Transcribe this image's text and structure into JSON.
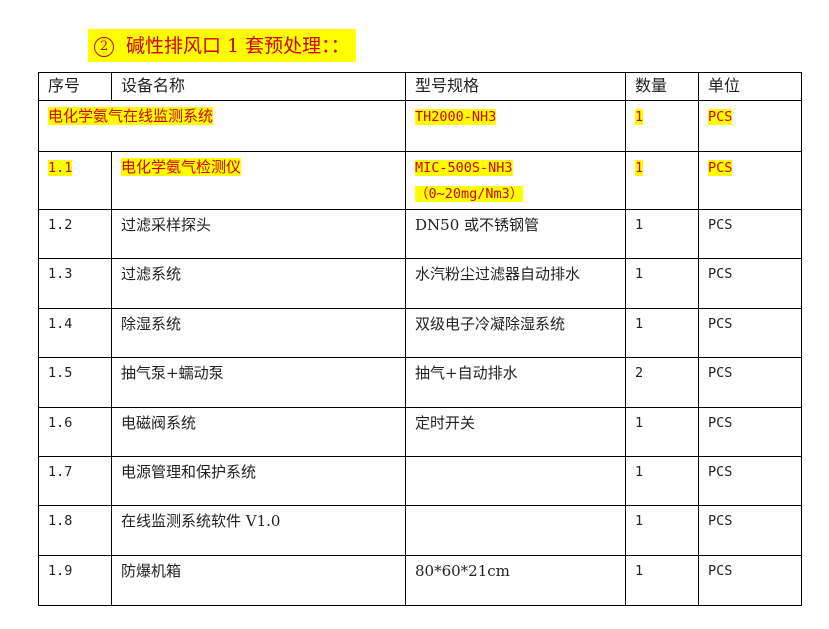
{
  "heading": {
    "number": "2",
    "text": "碱性排风口 1 套预处理：："
  },
  "table": {
    "headers": [
      "序号",
      "设备名称",
      "型号规格",
      "数量",
      "单位"
    ],
    "system_row": {
      "name": "电化学氨气在线监测系统",
      "model": "TH2000-NH3",
      "qty": "1",
      "unit": "PCS"
    },
    "rows": [
      {
        "no": "1.1",
        "name": "电化学氨气检测仪",
        "model": "MIC-500S-NH3",
        "model2": "（0~20mg/Nm3）",
        "qty": "1",
        "unit": "PCS"
      },
      {
        "no": "1.2",
        "name": "过滤采样探头",
        "model": "DN50 或不锈钢管",
        "qty": "1",
        "unit": "PCS"
      },
      {
        "no": "1.3",
        "name": "过滤系统",
        "model": "水汽粉尘过滤器自动排水",
        "qty": "1",
        "unit": "PCS"
      },
      {
        "no": "1.4",
        "name": "除湿系统",
        "model": "双级电子冷凝除湿系统",
        "qty": "1",
        "unit": "PCS"
      },
      {
        "no": "1.5",
        "name": "抽气泵+蠕动泵",
        "model": "抽气+自动排水",
        "qty": "2",
        "unit": "PCS"
      },
      {
        "no": "1.6",
        "name": "电磁阀系统",
        "model": "定时开关",
        "qty": "1",
        "unit": "PCS"
      },
      {
        "no": "1.7",
        "name": "电源管理和保护系统",
        "model": "",
        "qty": "1",
        "unit": "PCS"
      },
      {
        "no": "1.8",
        "name": "在线监测系统软件 V1.0",
        "model": "",
        "qty": "1",
        "unit": "PCS"
      },
      {
        "no": "1.9",
        "name": "防爆机箱",
        "model": "80*60*21cm",
        "qty": "1",
        "unit": "PCS"
      }
    ]
  },
  "colors": {
    "highlight": "#ffff00",
    "highlight_text": "#d40000"
  }
}
